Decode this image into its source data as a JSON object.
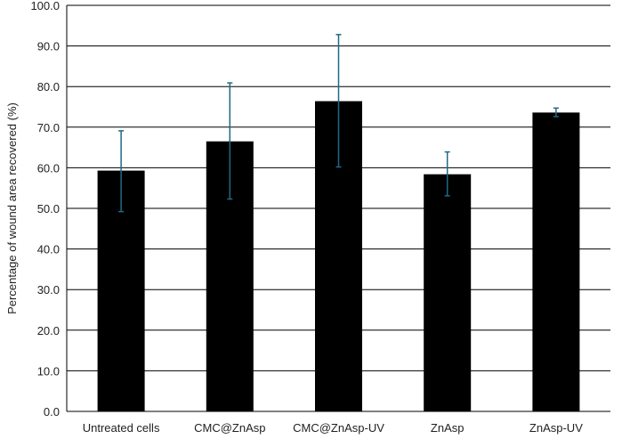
{
  "chart_data": {
    "type": "bar",
    "title": "",
    "xlabel": "",
    "ylabel": "Percentage  of wound area recovered  (%)",
    "ylim": [
      0,
      100
    ],
    "ytick_step": 10,
    "ytick_labels": [
      "0.0",
      "10.0",
      "20.0",
      "30.0",
      "40.0",
      "50.0",
      "60.0",
      "70.0",
      "80.0",
      "90.0",
      "100.0"
    ],
    "categories": [
      "Untreated cells",
      "CMC@ZnAsp",
      "CMC@ZnAsp-UV",
      "ZnAsp",
      "ZnAsp-UV"
    ],
    "series": [
      {
        "values": [
          59.3,
          66.5,
          76.4,
          58.4,
          73.6
        ],
        "error_low": [
          49.2,
          52.3,
          60.2,
          53.1,
          72.6
        ],
        "error_high": [
          69.1,
          80.9,
          92.8,
          63.9,
          74.7
        ]
      }
    ],
    "grid": true,
    "legend": "none",
    "colors": {
      "bar": "#000000",
      "error_bar": "#1f6a85",
      "grid": "#000000",
      "axis": "#000000",
      "text": "#222222"
    }
  }
}
